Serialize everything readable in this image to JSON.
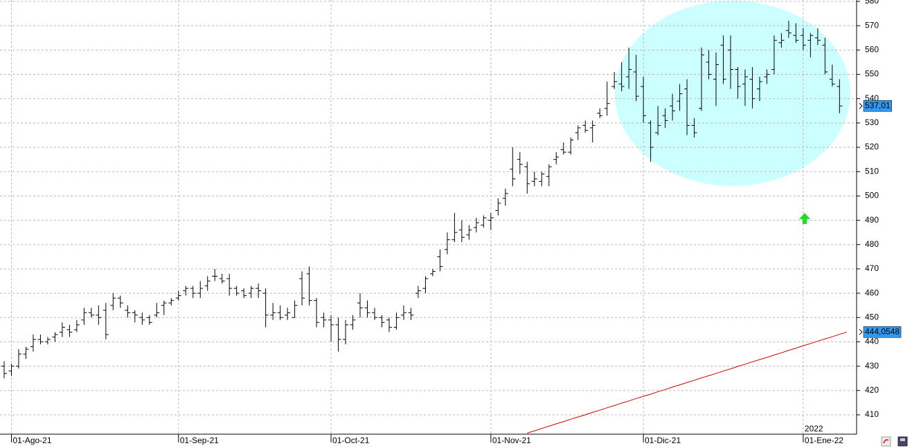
{
  "chart_data": {
    "type": "ohlc",
    "categories": [
      null,
      "01-Ago-21",
      null,
      null,
      null,
      null,
      null,
      null,
      null,
      null,
      null,
      null,
      null,
      null,
      null,
      null,
      null,
      null,
      null,
      null,
      null,
      null,
      null,
      null,
      "01-Sep-21",
      null,
      null,
      null,
      null,
      null,
      null,
      null,
      null,
      null,
      null,
      null,
      null,
      null,
      null,
      null,
      null,
      null,
      null,
      null,
      null,
      "01-Oct-21",
      null,
      null,
      null,
      null,
      null,
      null,
      null,
      null,
      null,
      null,
      null,
      null,
      null,
      null,
      null,
      null,
      null,
      null,
      null,
      null,
      null,
      "01-Nov-21",
      null,
      null,
      null,
      null,
      null,
      null,
      null,
      null,
      null,
      null,
      null,
      null,
      null,
      null,
      null,
      null,
      null,
      null,
      null,
      null,
      "01-Dic-21",
      null,
      null,
      null,
      null,
      null,
      null,
      null,
      null,
      null,
      null,
      null,
      null,
      null,
      null,
      null,
      null,
      null,
      null,
      null,
      null,
      null,
      "01-Ene-22",
      null,
      null,
      null,
      null
    ],
    "year_label": "2022",
    "bars": [
      [
        430,
        432,
        425,
        427
      ],
      [
        428,
        431,
        426,
        430
      ],
      [
        430,
        437,
        429,
        435
      ],
      [
        435,
        438,
        433,
        437
      ],
      [
        438,
        443,
        436,
        441
      ],
      [
        441,
        443,
        439,
        440
      ],
      [
        440,
        442,
        439,
        441
      ],
      [
        442,
        444,
        440,
        443
      ],
      [
        444,
        448,
        442,
        446
      ],
      [
        445,
        447,
        442,
        444
      ],
      [
        445,
        449,
        444,
        447
      ],
      [
        449,
        454,
        447,
        452
      ],
      [
        452,
        454,
        450,
        451
      ],
      [
        451,
        455,
        447,
        450
      ],
      [
        453,
        456,
        441,
        443
      ],
      [
        455,
        460,
        453,
        458
      ],
      [
        458,
        459,
        454,
        456
      ],
      [
        453,
        455,
        450,
        452
      ],
      [
        452,
        453,
        448,
        451
      ],
      [
        450,
        452,
        447,
        449
      ],
      [
        450,
        451,
        447,
        448
      ],
      [
        451,
        456,
        450,
        452
      ],
      [
        455,
        457,
        451,
        456
      ],
      [
        456,
        458,
        455,
        457
      ],
      [
        458,
        461,
        457,
        459
      ],
      [
        461,
        463,
        459,
        462
      ],
      [
        462,
        463,
        458,
        460
      ],
      [
        460,
        465,
        458,
        462
      ],
      [
        463,
        467,
        461,
        465
      ],
      [
        467,
        470,
        465,
        467
      ],
      [
        466,
        468,
        464,
        465
      ],
      [
        466,
        468,
        459,
        462
      ],
      [
        462,
        463,
        459,
        460
      ],
      [
        461,
        462,
        458,
        459
      ],
      [
        460,
        463,
        458,
        462
      ],
      [
        462,
        464,
        458,
        461
      ],
      [
        460,
        462,
        446,
        451
      ],
      [
        451,
        456,
        449,
        452
      ],
      [
        452,
        455,
        449,
        450
      ],
      [
        451,
        454,
        449,
        452
      ],
      [
        450,
        457,
        450,
        455
      ],
      [
        466,
        469,
        455,
        458
      ],
      [
        468,
        471,
        455,
        457
      ],
      [
        457,
        458,
        446,
        448
      ],
      [
        450,
        452,
        446,
        449
      ],
      [
        449,
        451,
        440,
        447
      ],
      [
        447,
        450,
        436,
        441
      ],
      [
        441,
        449,
        439,
        447
      ],
      [
        447,
        451,
        445,
        449
      ],
      [
        456,
        460,
        450,
        454
      ],
      [
        454,
        457,
        450,
        452
      ],
      [
        452,
        454,
        449,
        450
      ],
      [
        450,
        451,
        446,
        448
      ],
      [
        449,
        450,
        444,
        446
      ],
      [
        446,
        452,
        445,
        450
      ],
      [
        451,
        455,
        449,
        452
      ],
      [
        452,
        454,
        449,
        451
      ],
      [
        460,
        463,
        458,
        461
      ],
      [
        462,
        467,
        460,
        466
      ],
      [
        468,
        470,
        467,
        469
      ],
      [
        475,
        478,
        469,
        471
      ],
      [
        478,
        485,
        476,
        482
      ],
      [
        482,
        493,
        481,
        485
      ],
      [
        486,
        490,
        481,
        483
      ],
      [
        484,
        488,
        482,
        486
      ],
      [
        487,
        491,
        485,
        489
      ],
      [
        488,
        492,
        487,
        491
      ],
      [
        490,
        493,
        486,
        491
      ],
      [
        494,
        499,
        492,
        497
      ],
      [
        499,
        503,
        496,
        501
      ],
      [
        511,
        520,
        504,
        507
      ],
      [
        515,
        518,
        509,
        513
      ],
      [
        512,
        514,
        501,
        505
      ],
      [
        506,
        510,
        504,
        507
      ],
      [
        506,
        510,
        504,
        509
      ],
      [
        508,
        513,
        504,
        512
      ],
      [
        515,
        518,
        513,
        516
      ],
      [
        519,
        522,
        517,
        518
      ],
      [
        518,
        524,
        517,
        523
      ],
      [
        526,
        529,
        523,
        528
      ],
      [
        529,
        531,
        526,
        527
      ],
      [
        528,
        531,
        522,
        529
      ],
      [
        534,
        536,
        532,
        533
      ],
      [
        536,
        547,
        533,
        538
      ],
      [
        545,
        551,
        544,
        547
      ],
      [
        546,
        555,
        543,
        545
      ],
      [
        549,
        561,
        544,
        552
      ],
      [
        551,
        558,
        539,
        541
      ],
      [
        545,
        549,
        530,
        533
      ],
      [
        530,
        531,
        514,
        520
      ],
      [
        526,
        537,
        525,
        529
      ],
      [
        533,
        536,
        528,
        531
      ],
      [
        537,
        542,
        531,
        535
      ],
      [
        539,
        546,
        535,
        542
      ],
      [
        544,
        548,
        525,
        529
      ],
      [
        529,
        532,
        524,
        526
      ],
      [
        536,
        561,
        535,
        558
      ],
      [
        555,
        560,
        548,
        550
      ],
      [
        548,
        559,
        537,
        554
      ],
      [
        562,
        566,
        546,
        548
      ],
      [
        560,
        566,
        544,
        552
      ],
      [
        552,
        553,
        540,
        545
      ],
      [
        546,
        552,
        537,
        549
      ],
      [
        548,
        553,
        536,
        540
      ],
      [
        544,
        549,
        539,
        547
      ],
      [
        549,
        552,
        546,
        550
      ],
      [
        552,
        566,
        550,
        564
      ],
      [
        563,
        567,
        561,
        564
      ],
      [
        568,
        572,
        565,
        567
      ],
      [
        566,
        571,
        563,
        564
      ],
      [
        566,
        569,
        560,
        562
      ],
      [
        564,
        567,
        557,
        566
      ],
      [
        565,
        569,
        562,
        564
      ],
      [
        562,
        565,
        550,
        551
      ],
      [
        548,
        554,
        545,
        546
      ],
      [
        545,
        548,
        534,
        537.01
      ]
    ],
    "bar_color": "#000000",
    "last_close_label": "537,01",
    "moving_average": {
      "color": "#cc0000",
      "values": [
        null,
        null,
        null,
        null,
        null,
        null,
        null,
        null,
        null,
        null,
        null,
        null,
        null,
        null,
        null,
        null,
        null,
        null,
        null,
        null,
        null,
        null,
        null,
        null,
        null,
        null,
        null,
        null,
        null,
        null,
        null,
        null,
        null,
        null,
        null,
        null,
        null,
        null,
        null,
        null,
        null,
        null,
        null,
        null,
        null,
        null,
        null,
        null,
        null,
        null,
        null,
        null,
        null,
        null,
        null,
        null,
        null,
        null,
        null,
        null,
        null,
        null,
        null,
        null,
        null,
        null,
        null,
        null,
        null,
        null,
        null,
        null,
        402.5,
        403.4,
        404.4,
        405.3,
        406.3,
        407.2,
        408.2,
        409.1,
        410.0,
        411.0,
        411.9,
        412.9,
        413.8,
        414.8,
        415.7,
        416.7,
        417.6,
        418.5,
        419.5,
        420.4,
        421.4,
        422.3,
        423.3,
        424.2,
        425.2,
        426.1,
        427.0,
        428.0,
        428.9,
        429.9,
        430.8,
        431.8,
        432.7,
        433.6,
        434.6,
        435.5,
        436.5,
        437.4,
        438.4,
        439.3,
        440.3,
        441.2,
        442.1,
        443.1,
        444.0548
      ],
      "last_label": "444,0548"
    },
    "label_color": "#3399ee",
    "ylim": [
      410,
      580
    ],
    "yticks": [
      410,
      420,
      430,
      440,
      450,
      460,
      470,
      480,
      490,
      500,
      510,
      520,
      530,
      540,
      550,
      560,
      570,
      580
    ],
    "grid": true
  }
}
